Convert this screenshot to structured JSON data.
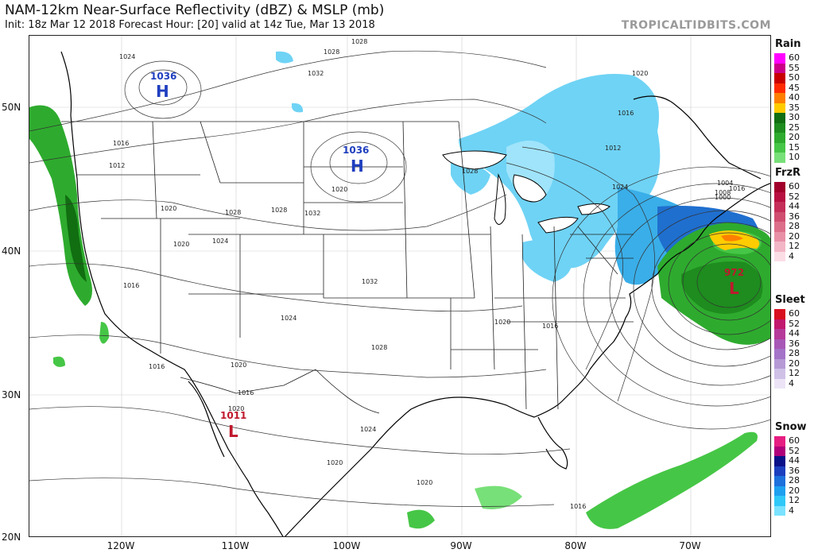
{
  "header": {
    "title": "NAM-12km Near-Surface Reflectivity (dBZ) & MSLP (mb)",
    "subtitle": "Init: 18z Mar 12 2018   Forecast Hour: [20]   valid at 14z Tue, Mar 13 2018",
    "watermark": "TROPICALTIDBITS.COM"
  },
  "axes": {
    "lat_labels": [
      "50N",
      "40N",
      "30N",
      "20N"
    ],
    "lon_labels": [
      "120W",
      "110W",
      "100W",
      "90W",
      "80W",
      "70W"
    ]
  },
  "pressure_centers": [
    {
      "type": "H",
      "value": "1036",
      "color": "#1f3fbf"
    },
    {
      "type": "H",
      "value": "1036",
      "color": "#1f3fbf"
    },
    {
      "type": "L",
      "value": "1011",
      "color": "#c0182c"
    },
    {
      "type": "L",
      "value": "972",
      "color": "#c0182c"
    }
  ],
  "isobar_labels": [
    "1024",
    "1028",
    "1028",
    "1032",
    "1016",
    "1012",
    "1020",
    "1028",
    "1024",
    "1020",
    "1016",
    "1020",
    "1028",
    "1032",
    "1024",
    "1032",
    "1028",
    "1016",
    "1020",
    "1016",
    "1020",
    "1024",
    "1020",
    "1016",
    "1020",
    "1020",
    "1028",
    "1016",
    "1012",
    "1024",
    "1020",
    "1016",
    "1016",
    "1008",
    "1004",
    "1000"
  ],
  "legend": {
    "rain": {
      "title": "Rain",
      "levels": [
        "60",
        "55",
        "50",
        "45",
        "40",
        "35",
        "30",
        "25",
        "20",
        "15",
        "10"
      ],
      "colors": [
        "#ff00ff",
        "#cc0088",
        "#c80000",
        "#ff2a00",
        "#ff7f00",
        "#ffcc00",
        "#116e11",
        "#1e8c1e",
        "#2eab2e",
        "#46c646",
        "#78e078"
      ]
    },
    "frzr": {
      "title": "FrzR",
      "levels": [
        "60",
        "52",
        "44",
        "36",
        "28",
        "20",
        "12",
        "4"
      ],
      "colors": [
        "#a0002a",
        "#b71040",
        "#c42e58",
        "#d04e70",
        "#dc6e8a",
        "#e890a6",
        "#f2b6c6",
        "#fbdde6"
      ]
    },
    "sleet": {
      "title": "Sleet",
      "levels": [
        "60",
        "52",
        "44",
        "36",
        "28",
        "20",
        "12",
        "4"
      ],
      "colors": [
        "#d8101f",
        "#c2186e",
        "#b63a9a",
        "#a858b6",
        "#a474c8",
        "#b59ad6",
        "#cfc0e6",
        "#ece4f6"
      ]
    },
    "snow": {
      "title": "Snow",
      "levels": [
        "60",
        "52",
        "44",
        "36",
        "28",
        "20",
        "12",
        "4"
      ],
      "colors": [
        "#e61e82",
        "#b0007a",
        "#0a1088",
        "#1c3fbf",
        "#1e70dc",
        "#1ea0f0",
        "#30c8f8",
        "#7ae2ff"
      ]
    }
  }
}
